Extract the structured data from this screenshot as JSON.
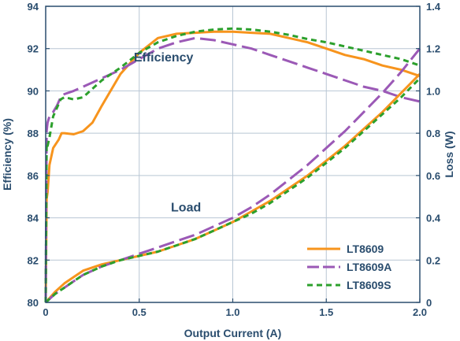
{
  "chart_data": {
    "type": "line",
    "title": "",
    "xlabel": "Output Current (A)",
    "ylabel_left": "Efficiency (%)",
    "ylabel_right": "Loss (W)",
    "xlim": [
      0,
      2.0
    ],
    "ylim_left": [
      80,
      94
    ],
    "ylim_right": [
      0,
      1.4
    ],
    "x_ticks": [
      0,
      0.5,
      1.0,
      1.5,
      2.0
    ],
    "x_tick_labels": [
      "0",
      "0.5",
      "1.0",
      "1.5",
      "2.0"
    ],
    "y_left_ticks": [
      80,
      82,
      84,
      86,
      88,
      90,
      92,
      94
    ],
    "y_right_ticks": [
      0,
      0.2,
      0.4,
      0.6,
      0.8,
      1.0,
      1.2,
      1.4
    ],
    "y_right_tick_labels": [
      "0",
      "0.2",
      "0.4",
      "0.6",
      "0.8",
      "1.0",
      "1.2",
      "1.4"
    ],
    "grid": true,
    "legend_position": "bottom-right",
    "annotations": [
      {
        "text": "Efficiency",
        "x": 0.63,
        "y": 91.4,
        "axis": "left"
      },
      {
        "text": "Load",
        "x": 0.75,
        "y": 84.3,
        "axis": "left"
      }
    ],
    "series": [
      {
        "name": "LT8609",
        "color": "#f7941d",
        "dash": "solid",
        "group": "efficiency",
        "axis": "left",
        "x": [
          0.0,
          0.005,
          0.01,
          0.02,
          0.04,
          0.07,
          0.085,
          0.1,
          0.15,
          0.2,
          0.25,
          0.3,
          0.4,
          0.5,
          0.6,
          0.7,
          0.8,
          0.9,
          1.0,
          1.1,
          1.2,
          1.3,
          1.4,
          1.5,
          1.6,
          1.7,
          1.8,
          1.9,
          2.0
        ],
        "y": [
          80.0,
          84.9,
          85.2,
          86.5,
          87.3,
          87.7,
          88.0,
          88.0,
          87.95,
          88.1,
          88.5,
          89.3,
          90.8,
          91.8,
          92.5,
          92.7,
          92.75,
          92.8,
          92.8,
          92.75,
          92.7,
          92.5,
          92.3,
          92.0,
          91.7,
          91.5,
          91.2,
          91.0,
          90.7
        ]
      },
      {
        "name": "LT8609A",
        "color": "#9b59b6",
        "dash": "long-dash",
        "group": "efficiency",
        "axis": "left",
        "x": [
          0.0,
          0.005,
          0.01,
          0.02,
          0.04,
          0.06,
          0.08,
          0.1,
          0.15,
          0.2,
          0.3,
          0.4,
          0.5,
          0.6,
          0.7,
          0.8,
          0.9,
          1.0,
          1.1,
          1.2,
          1.3,
          1.4,
          1.5,
          1.6,
          1.7,
          1.8,
          1.9,
          2.0
        ],
        "y": [
          80.0,
          88.1,
          88.5,
          88.8,
          89.0,
          89.3,
          89.7,
          89.85,
          90.0,
          90.2,
          90.6,
          91.0,
          91.5,
          92.0,
          92.3,
          92.5,
          92.4,
          92.2,
          92.0,
          91.7,
          91.4,
          91.1,
          90.8,
          90.5,
          90.2,
          90.0,
          89.7,
          89.5
        ]
      },
      {
        "name": "LT8609S",
        "color": "#2ca02c",
        "dash": "short-dash",
        "group": "efficiency",
        "axis": "left",
        "x": [
          0.0,
          0.005,
          0.01,
          0.02,
          0.04,
          0.06,
          0.08,
          0.1,
          0.15,
          0.2,
          0.25,
          0.3,
          0.4,
          0.5,
          0.6,
          0.7,
          0.8,
          0.9,
          1.0,
          1.1,
          1.2,
          1.3,
          1.4,
          1.5,
          1.6,
          1.7,
          1.8,
          1.9,
          2.0
        ],
        "y": [
          80.0,
          87.5,
          87.4,
          87.8,
          88.8,
          89.2,
          89.6,
          89.7,
          89.6,
          89.7,
          90.1,
          90.5,
          91.1,
          91.8,
          92.3,
          92.6,
          92.8,
          92.9,
          92.95,
          92.9,
          92.8,
          92.65,
          92.45,
          92.3,
          92.1,
          91.9,
          91.7,
          91.5,
          91.2
        ]
      },
      {
        "name": "LT8609",
        "color": "#f7941d",
        "dash": "solid",
        "group": "loss",
        "axis": "right",
        "x": [
          0.0,
          0.05,
          0.1,
          0.15,
          0.2,
          0.3,
          0.4,
          0.5,
          0.6,
          0.7,
          0.8,
          0.9,
          1.0,
          1.1,
          1.2,
          1.3,
          1.4,
          1.5,
          1.6,
          1.7,
          1.8,
          1.9,
          2.0
        ],
        "y": [
          0.0,
          0.05,
          0.09,
          0.12,
          0.15,
          0.18,
          0.2,
          0.22,
          0.24,
          0.27,
          0.3,
          0.34,
          0.38,
          0.43,
          0.48,
          0.54,
          0.6,
          0.67,
          0.74,
          0.82,
          0.9,
          0.99,
          1.08
        ]
      },
      {
        "name": "LT8609A",
        "color": "#9b59b6",
        "dash": "long-dash",
        "group": "loss",
        "axis": "right",
        "x": [
          0.0,
          0.05,
          0.1,
          0.15,
          0.2,
          0.3,
          0.4,
          0.5,
          0.6,
          0.7,
          0.8,
          0.9,
          1.0,
          1.1,
          1.2,
          1.3,
          1.4,
          1.5,
          1.6,
          1.7,
          1.8,
          1.9,
          2.0
        ],
        "y": [
          0.0,
          0.04,
          0.07,
          0.1,
          0.13,
          0.17,
          0.2,
          0.23,
          0.26,
          0.29,
          0.32,
          0.36,
          0.4,
          0.45,
          0.51,
          0.58,
          0.65,
          0.73,
          0.81,
          0.9,
          0.99,
          1.09,
          1.2
        ]
      },
      {
        "name": "LT8609S",
        "color": "#2ca02c",
        "dash": "short-dash",
        "group": "loss",
        "axis": "right",
        "x": [
          0.0,
          0.05,
          0.1,
          0.15,
          0.2,
          0.3,
          0.4,
          0.5,
          0.6,
          0.7,
          0.8,
          0.9,
          1.0,
          1.1,
          1.2,
          1.3,
          1.4,
          1.5,
          1.6,
          1.7,
          1.8,
          1.9,
          2.0
        ],
        "y": [
          0.0,
          0.04,
          0.07,
          0.1,
          0.13,
          0.17,
          0.2,
          0.22,
          0.24,
          0.27,
          0.3,
          0.34,
          0.38,
          0.42,
          0.47,
          0.53,
          0.59,
          0.66,
          0.73,
          0.81,
          0.89,
          0.97,
          1.06
        ]
      }
    ],
    "legend": [
      {
        "name": "LT8609",
        "color": "#f7941d",
        "dash": "solid"
      },
      {
        "name": "LT8609A",
        "color": "#9b59b6",
        "dash": "long-dash"
      },
      {
        "name": "LT8609S",
        "color": "#2ca02c",
        "dash": "short-dash"
      }
    ],
    "colors": {
      "axis": "#2a4d6e",
      "grid": "#b8c6d4"
    }
  }
}
